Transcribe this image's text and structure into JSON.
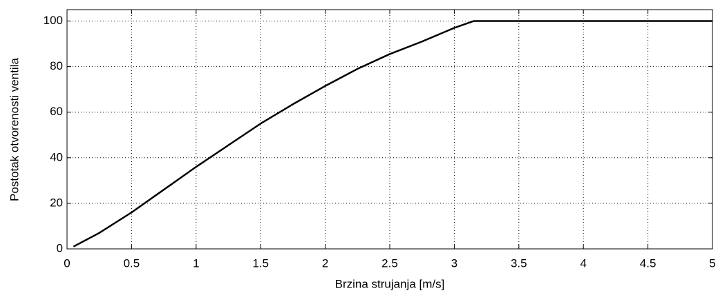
{
  "chart_data": {
    "type": "line",
    "xlabel": "Brzina strujanja [m/s]",
    "ylabel": "Postotak otvorenosti ventila",
    "x": [
      0.05,
      0.25,
      0.5,
      0.75,
      1,
      1.25,
      1.5,
      1.75,
      2,
      2.25,
      2.5,
      2.75,
      3,
      3.15,
      5
    ],
    "series": [
      {
        "color": "#000000",
        "values": [
          1,
          7,
          16,
          26,
          36,
          45.5,
          55,
          63.5,
          71.5,
          79,
          85.5,
          91,
          97,
          100,
          100
        ]
      }
    ],
    "xlim": [
      0,
      5
    ],
    "xticks": [
      0,
      0.5,
      1,
      1.5,
      2,
      2.5,
      3,
      3.5,
      4,
      4.5,
      5
    ],
    "ylim": [
      0,
      105
    ],
    "yticks": [
      0,
      20,
      40,
      60,
      80,
      100
    ],
    "grid": true
  }
}
